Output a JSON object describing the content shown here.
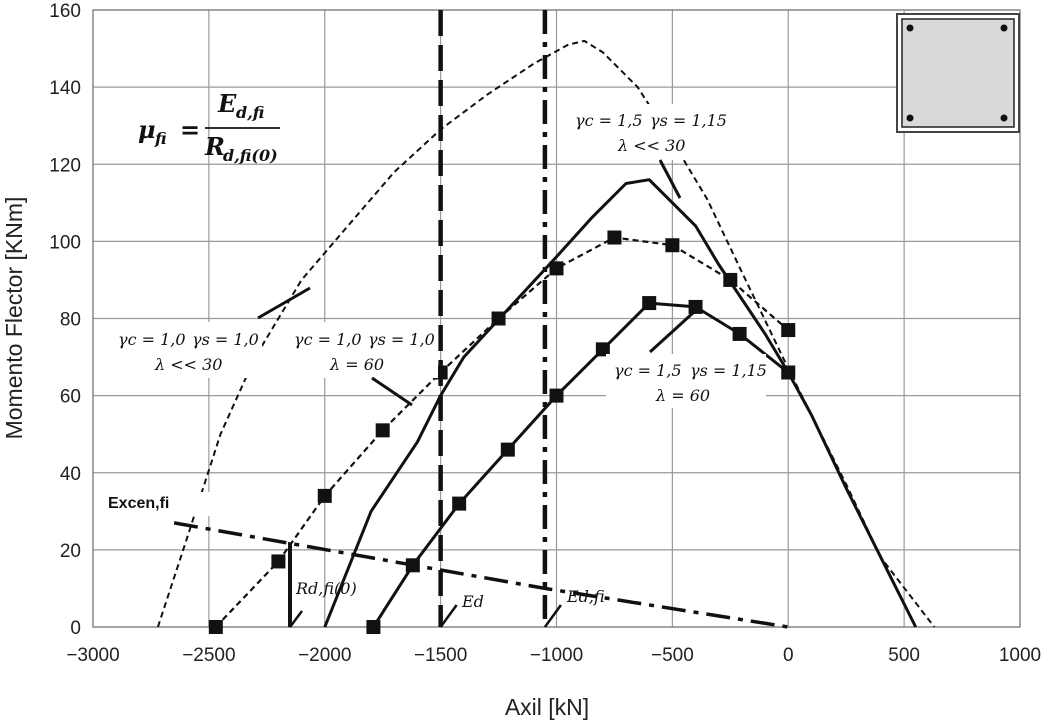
{
  "chart_data": {
    "type": "line",
    "xlabel": "Axil [kN]",
    "ylabel": "Momento Flector [KNm]",
    "xlim": [
      -3000,
      1000
    ],
    "ylim": [
      0,
      160
    ],
    "xticks": [
      "−3000",
      "−2500",
      "−2000",
      "−1500",
      "−1000",
      "−500",
      "0",
      "500",
      "1000"
    ],
    "yticks": [
      "0",
      "20",
      "40",
      "60",
      "80",
      "100",
      "120",
      "140",
      "160"
    ],
    "grid": true,
    "series": [
      {
        "style": "dashed-thin",
        "points": [
          [
            -2720,
            0
          ],
          [
            -2600,
            22
          ],
          [
            -2450,
            50
          ],
          [
            -2300,
            70
          ],
          [
            -2100,
            90
          ],
          [
            -1900,
            104
          ],
          [
            -1700,
            118
          ],
          [
            -1500,
            129
          ],
          [
            -1300,
            138
          ],
          [
            -1100,
            146
          ],
          [
            -950,
            151
          ],
          [
            -880,
            152
          ],
          [
            -800,
            149
          ],
          [
            -650,
            140
          ],
          [
            -500,
            126
          ],
          [
            -350,
            111
          ],
          [
            -200,
            92
          ],
          [
            0,
            67
          ],
          [
            100,
            55
          ],
          [
            250,
            37
          ],
          [
            400,
            18
          ],
          [
            630,
            0
          ]
        ]
      },
      {
        "style": "solid-thick",
        "points": [
          [
            -2000,
            0
          ],
          [
            -1800,
            30
          ],
          [
            -1600,
            48
          ],
          [
            -1500,
            60
          ],
          [
            -1400,
            70
          ],
          [
            -1200,
            83
          ],
          [
            -1000,
            96
          ],
          [
            -850,
            106
          ],
          [
            -700,
            115
          ],
          [
            -600,
            116
          ],
          [
            -500,
            110
          ],
          [
            -400,
            104
          ],
          [
            -300,
            94
          ],
          [
            -100,
            76
          ],
          [
            0,
            66
          ],
          [
            100,
            55
          ],
          [
            250,
            36
          ],
          [
            400,
            18
          ],
          [
            550,
            0
          ]
        ]
      },
      {
        "style": "dashed-markers",
        "markers": true,
        "points": [
          [
            -2470,
            0
          ],
          [
            -2200,
            17
          ],
          [
            -2000,
            34
          ],
          [
            -1750,
            51
          ],
          [
            -1500,
            66
          ],
          [
            -1250,
            80
          ],
          [
            -1000,
            93
          ],
          [
            -750,
            101
          ],
          [
            -500,
            99
          ],
          [
            -250,
            90
          ],
          [
            0,
            77
          ]
        ]
      },
      {
        "style": "solid-markers",
        "markers": true,
        "points": [
          [
            -1790,
            0
          ],
          [
            -1620,
            16
          ],
          [
            -1420,
            32
          ],
          [
            -1210,
            46
          ],
          [
            -1000,
            60
          ],
          [
            -800,
            72
          ],
          [
            -600,
            84
          ],
          [
            -400,
            83
          ],
          [
            -210,
            76
          ],
          [
            0,
            66
          ]
        ]
      }
    ],
    "vlines": [
      {
        "x": -1500,
        "label": "E_d",
        "style": "dash-long"
      },
      {
        "x": -1050,
        "label": "E_d,fi",
        "style": "dash-dot"
      },
      {
        "x": -2150,
        "label": "R_d,fi(0)",
        "style": "solid",
        "y_from": 0,
        "y_to": 22
      }
    ],
    "eccentricity_line": {
      "label": "Excen,fi",
      "points": [
        [
          -2650,
          27
        ],
        [
          -1050,
          10
        ],
        [
          0,
          0
        ]
      ]
    },
    "annotations": [
      {
        "gamma_c": "1,0",
        "gamma_s": "1,0",
        "lambda": "<< 30"
      },
      {
        "gamma_c": "1,0",
        "gamma_s": "1,0",
        "lambda": "= 60"
      },
      {
        "gamma_c": "1,5",
        "gamma_s": "1,15",
        "lambda": "<< 30"
      },
      {
        "gamma_c": "1,5",
        "gamma_s": "1,15",
        "lambda": "= 60"
      }
    ],
    "formula": {
      "lhs": "μ",
      "lhs_sub": "fi",
      "num": "E",
      "num_sub": "d,fi",
      "den": "R",
      "den_sub": "d,fi(0)"
    }
  },
  "labels": {
    "ann1_gc_sym": "γc = 1,0",
    "ann1_gs_sym": "γs = 1,0",
    "ann1_lam": "λ << 30",
    "ann2_gc_sym": "γc = 1,0",
    "ann2_gs_sym": "γs = 1,0",
    "ann2_lam": "λ  = 60",
    "ann3_gc_sym": "γc = 1,5",
    "ann3_gs_sym": "γs = 1,15",
    "ann3_lam": "λ << 30",
    "ann4_gc_sym": "γc = 1,5",
    "ann4_gs_sym": "γs = 1,15",
    "ann4_lam": "λ  = 60",
    "excen": "Excen,fi",
    "ed": "Ed",
    "edfi": "Ed,fi",
    "rdfi0": "Rd,fi(0)"
  }
}
